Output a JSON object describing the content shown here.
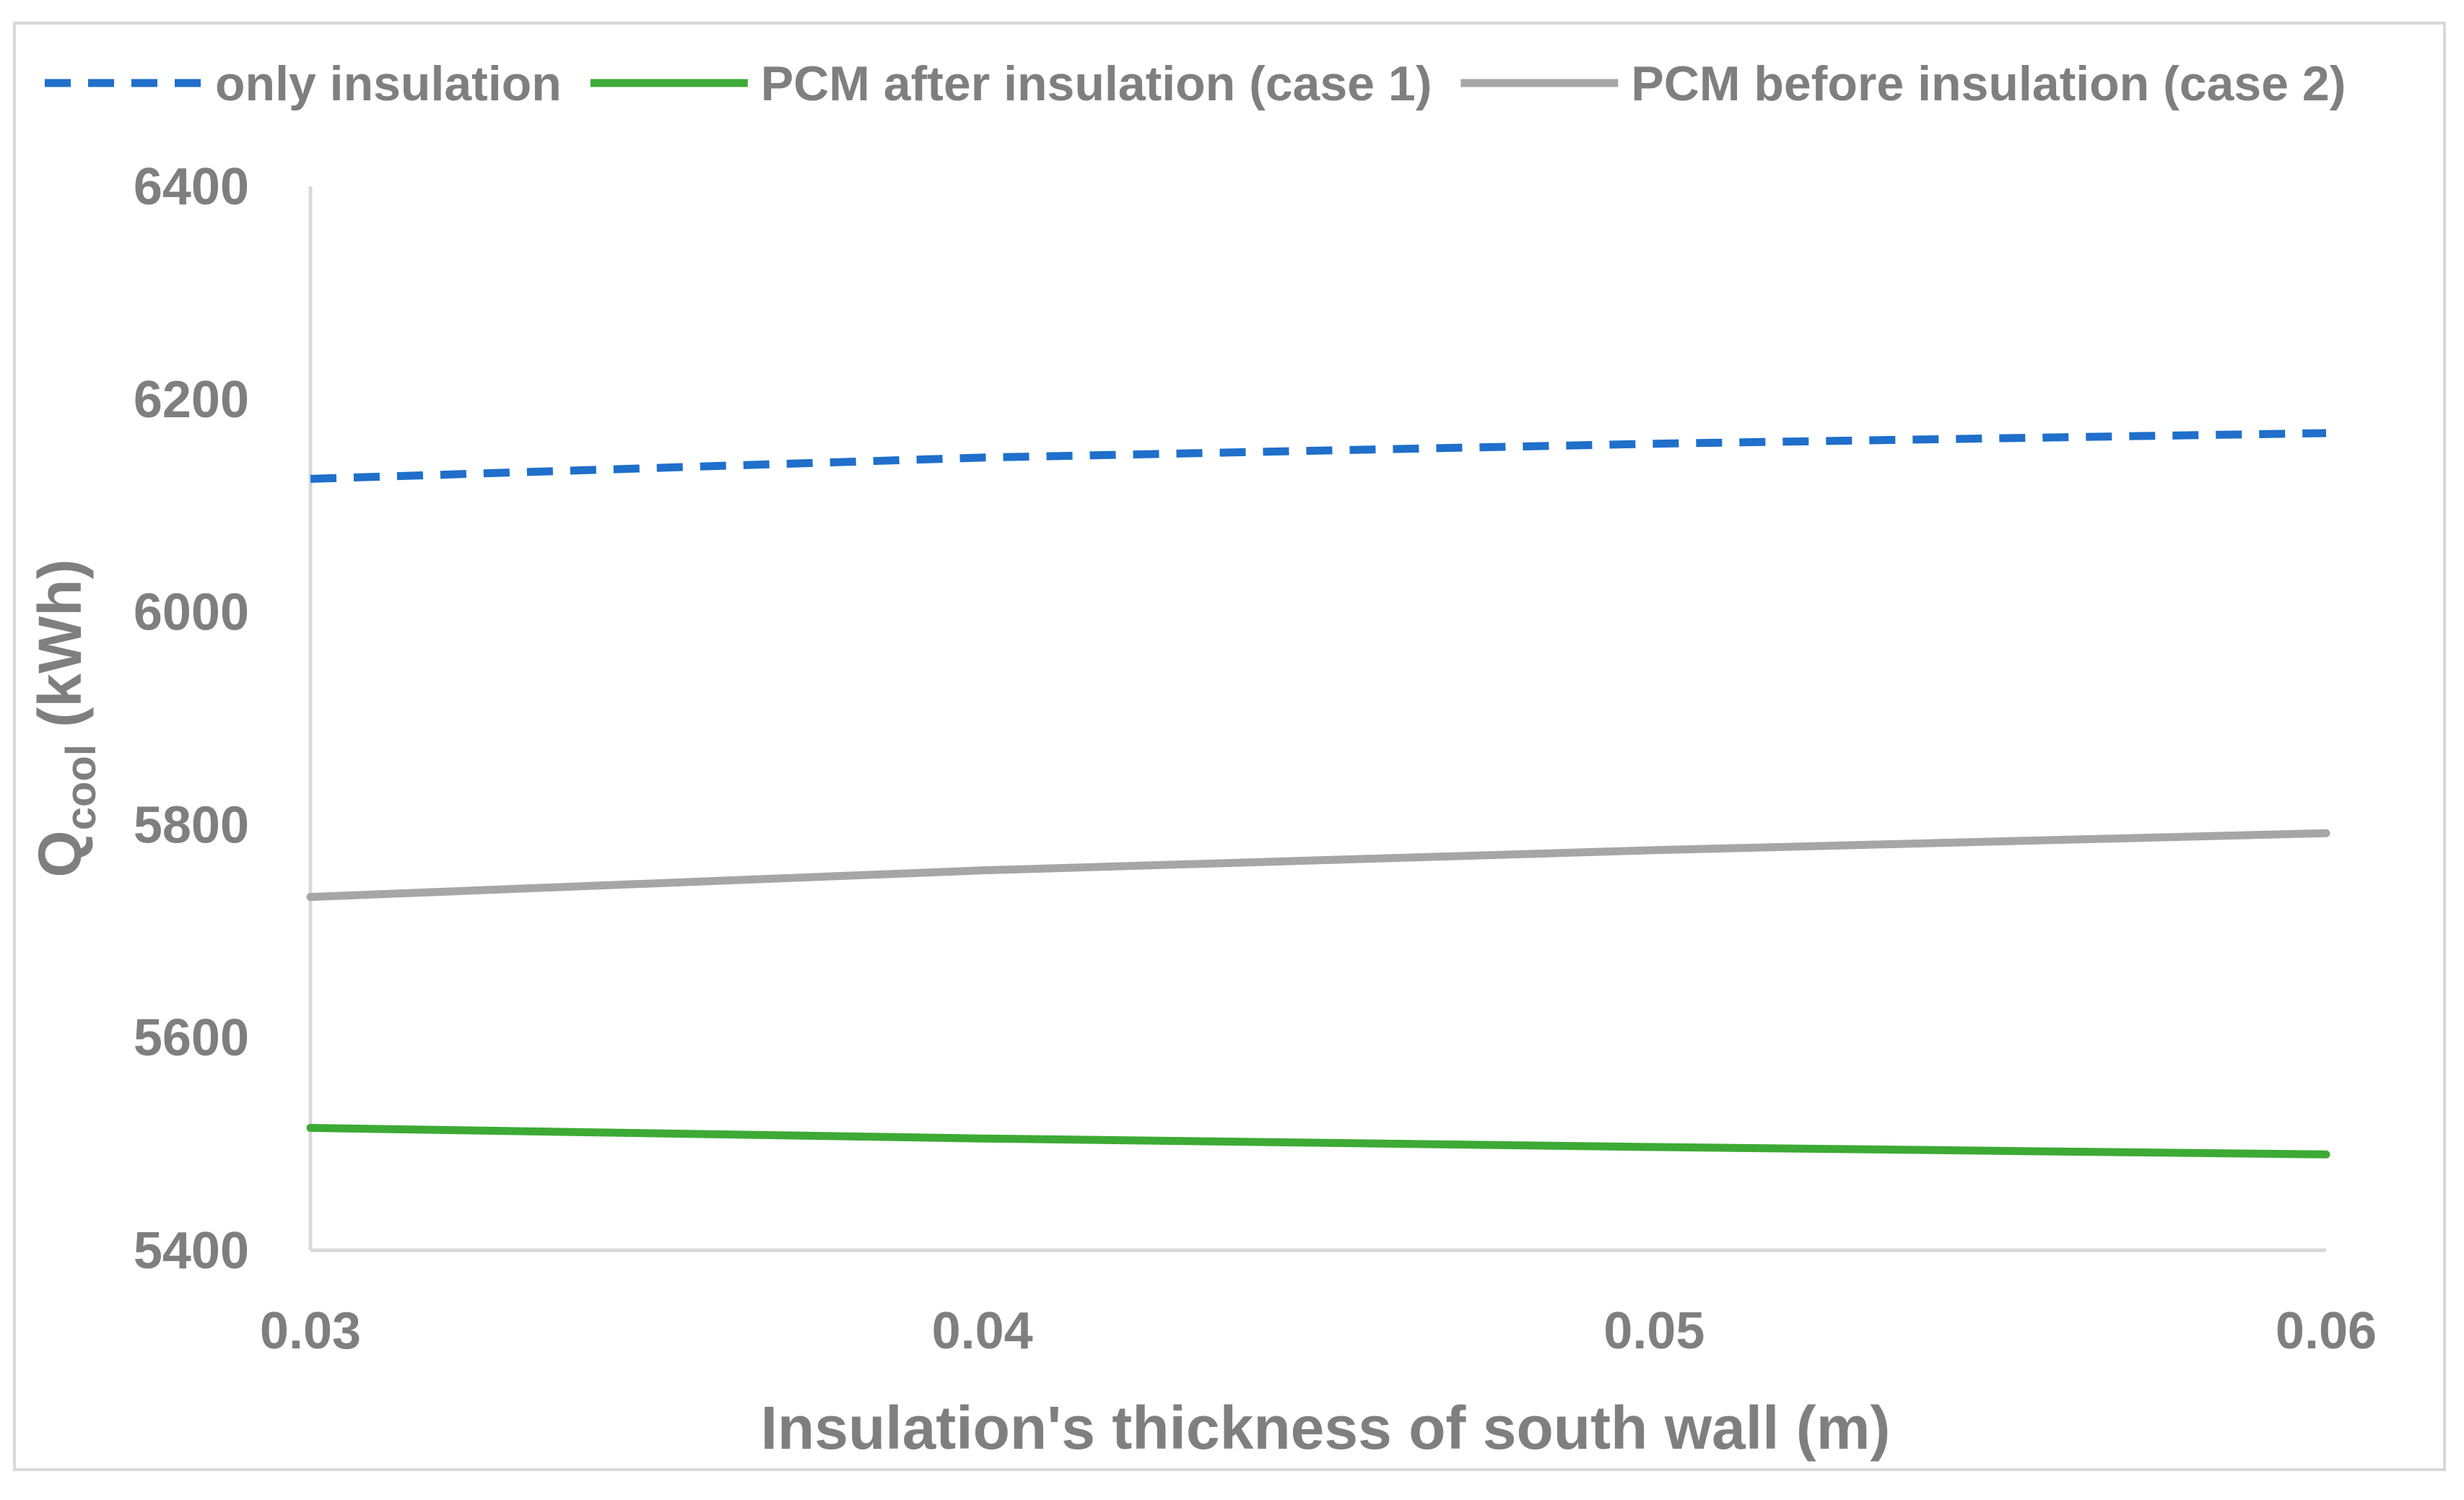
{
  "chart_data": {
    "type": "line",
    "xlabel": "Insulation's thickness of south wall (m)",
    "ylabel_main": "Q",
    "ylabel_sub": "cool",
    "ylabel_unit": " (kWh)",
    "x": [
      0.03,
      0.04,
      0.05,
      0.06
    ],
    "x_tick_labels": [
      "0.03",
      "0.04",
      "0.05",
      "0.06"
    ],
    "xlim": [
      0.03,
      0.06
    ],
    "ylim": [
      5400,
      6400
    ],
    "y_ticks": [
      5400,
      5600,
      5800,
      6000,
      6200,
      6400
    ],
    "y_tick_labels": [
      "5400",
      "5600",
      "5800",
      "6000",
      "6200",
      "6400"
    ],
    "grid": false,
    "legend_position": "top",
    "series": [
      {
        "name": "only insulation",
        "values": [
          6125,
          6145,
          6158,
          6168
        ],
        "color": "#1f6fcb",
        "style": "dashed"
      },
      {
        "name": "PCM after insulation (case 1)",
        "values": [
          5515,
          5505,
          5497,
          5490
        ],
        "color": "#3daa35",
        "style": "solid"
      },
      {
        "name": "PCM before insulation (case 2)",
        "values": [
          5732,
          5757,
          5776,
          5792
        ],
        "color": "#a6a6a6",
        "style": "solid"
      }
    ],
    "axis_color": "#d9d9d9",
    "text_color": "#7f7f7f"
  }
}
